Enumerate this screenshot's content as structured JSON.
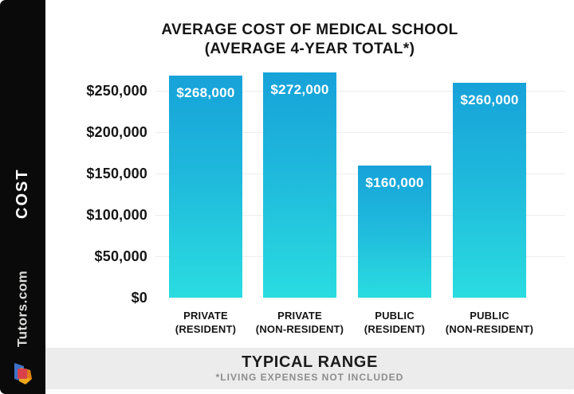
{
  "sidebar": {
    "cost_label": "COST",
    "brand": "Tutors.com",
    "logo_icon": "tutors-cube-logo",
    "background": "#0a0a0a"
  },
  "title": {
    "line1": "AVERAGE COST OF MEDICAL SCHOOL",
    "line2": "(AVERAGE 4-YEAR TOTAL*)"
  },
  "footer": {
    "heading": "TYPICAL RANGE",
    "note": "*LIVING EXPENSES NOT INCLUDED"
  },
  "colors": {
    "bar_gradient_top": "#17a2d9",
    "bar_gradient_bottom": "#2adce0",
    "gridline": "#ededed",
    "footer_band": "#ececec",
    "footer_note_text": "#8d8d8d",
    "sidebar_black": "#0a0a0a",
    "logo_blue": "#3d72c8",
    "logo_red": "#d8414b",
    "logo_yellow": "#f2a71b"
  },
  "chart_data": {
    "type": "bar",
    "title": "AVERAGE COST OF MEDICAL SCHOOL (AVERAGE 4-YEAR TOTAL*)",
    "categories": [
      {
        "line1": "PRIVATE",
        "line2": "(RESIDENT)"
      },
      {
        "line1": "PRIVATE",
        "line2": "(NON-RESIDENT)"
      },
      {
        "line1": "PUBLIC",
        "line2": "(RESIDENT)"
      },
      {
        "line1": "PUBLIC",
        "line2": "(NON-RESIDENT)"
      }
    ],
    "values": [
      268000,
      272000,
      160000,
      260000
    ],
    "value_labels": [
      "$268,000",
      "$272,000",
      "$160,000",
      "$260,000"
    ],
    "y_ticks": [
      {
        "label": "$250,000",
        "value": 250000
      },
      {
        "label": "$200,000",
        "value": 200000
      },
      {
        "label": "$150,000",
        "value": 150000
      },
      {
        "label": "$100,000",
        "value": 100000
      },
      {
        "label": "$50,000",
        "value": 50000
      },
      {
        "label": "$0",
        "value": 0
      }
    ],
    "xlabel": "",
    "ylabel": "COST",
    "ylim": [
      0,
      250000
    ],
    "grid": true,
    "legend": false
  }
}
